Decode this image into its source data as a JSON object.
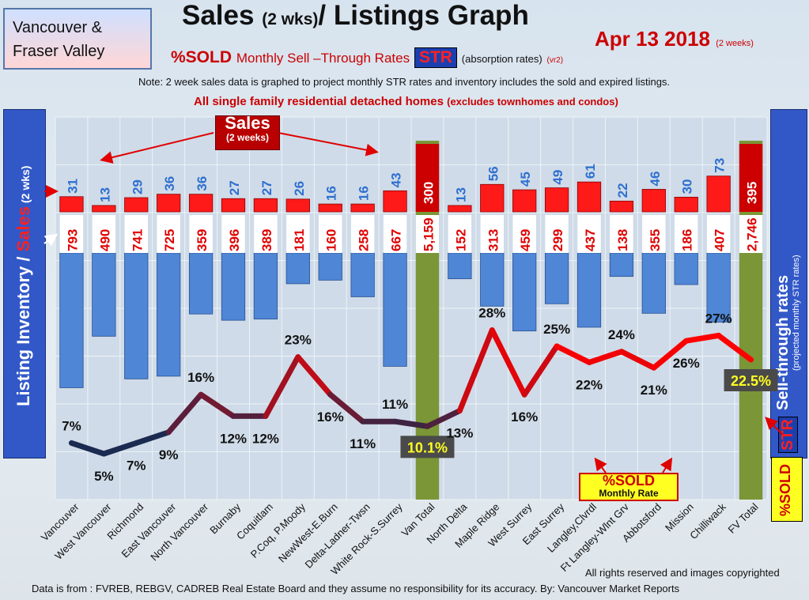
{
  "header": {
    "region": [
      "Vancouver &",
      "Fraser Valley"
    ],
    "title_main": "Sales",
    "title_small": "(2 wks)",
    "title_rest": "/ Listings Graph",
    "date": "Apr 13  2018",
    "date_small": "(2 weeks)",
    "subtitle_sold": "%SOLD",
    "subtitle_rates": "Monthly Sell –Through Rates",
    "subtitle_str": "STR",
    "subtitle_abs": "(absorption rates)",
    "subtitle_ver": "(vr2)",
    "note": "Note: 2 week sales data is graphed to project monthly STR rates and inventory includes the sold and expired listings.",
    "subnote": "All single family residential detached homes",
    "subnote_small": "(excludes townhomes and condos)"
  },
  "side": {
    "left_label_inventory": "Listing Inventory",
    "left_label_slash": " / ",
    "left_label_sales": "Sales",
    "left_label_suffix": " (2 wks)",
    "right_label": "Sell-through rates",
    "right_label_small": "(projected monthly STR rates)",
    "right_str": "STR",
    "right_sold": "%SOLD"
  },
  "sales_banner": {
    "big": "Sales",
    "small": "(2 weeks)"
  },
  "legend_box": {
    "line1": "%SOLD",
    "line2": "Monthly Rate"
  },
  "footer": {
    "rights": "All rights reserved and  images copyrighted",
    "source": "Data is from : FVREB, REBGV, CADREB Real Estate Board and they assume  no responsibility for its accuracy.  By: Vancouver Market Reports"
  },
  "chart_data": {
    "type": "bar",
    "categories": [
      "Vancouver",
      "West Vancouver",
      "Richmond",
      "East Vancouver",
      "North Vancouver",
      "Burnaby",
      "Coquitlam",
      "P.Coq, P.Moody",
      "NewWest-E.Burn",
      "Delta-Ladner-Twsn",
      "White Rock-S.Surrey",
      "Van Total",
      "North Delta",
      "Maple Ridge",
      "West Surrey",
      "East Surrey",
      "Langley,Clvrdl",
      "Ft Langley-Wlnt Grv",
      "Abbotsford",
      "Mission",
      "Chilliwack",
      "FV Total"
    ],
    "series": [
      {
        "name": "Sales",
        "values": [
          31,
          13,
          29,
          36,
          36,
          27,
          27,
          26,
          16,
          16,
          43,
          300,
          13,
          56,
          45,
          49,
          61,
          22,
          46,
          30,
          73,
          395
        ]
      },
      {
        "name": "Listing Inventory",
        "values": [
          793,
          490,
          741,
          725,
          359,
          396,
          389,
          181,
          160,
          258,
          667,
          5159,
          152,
          313,
          459,
          299,
          437,
          138,
          355,
          186,
          407,
          2746
        ]
      },
      {
        "name": "%SOLD",
        "values": [
          7,
          5,
          7,
          9,
          16,
          12,
          12,
          23,
          16,
          11,
          11,
          10.1,
          13,
          28,
          16,
          25,
          22,
          24,
          21,
          26,
          27,
          22.5
        ]
      }
    ],
    "sales_labels": [
      "31",
      "13",
      "29",
      "36",
      "36",
      "27",
      "27",
      "26",
      "16",
      "16",
      "43",
      "300",
      "13",
      "56",
      "45",
      "49",
      "61",
      "22",
      "46",
      "30",
      "73",
      "395"
    ],
    "inventory_labels": [
      "793",
      "490",
      "741",
      "725",
      "359",
      "396",
      "389",
      "181",
      "160",
      "258",
      "667",
      "5,159",
      "152",
      "313",
      "459",
      "299",
      "437",
      "138",
      "355",
      "186",
      "407",
      "2,746"
    ],
    "str_labels": [
      "7%",
      "5%",
      "7%",
      "9%",
      "16%",
      "12%",
      "12%",
      "23%",
      "16%",
      "11%",
      "11%",
      "10.1%",
      "13%",
      "28%",
      "16%",
      "25%",
      "22%",
      "24%",
      "21%",
      "26%",
      "27%",
      "22.5%"
    ],
    "totals": [
      "Van Total",
      "FV Total"
    ],
    "grid": true,
    "colors": {
      "sales": "#ff1a1a",
      "inventory": "#4f86d6",
      "total": "#7a9636",
      "line_low": "#1b2a50",
      "line_high": "#ff0000"
    }
  }
}
